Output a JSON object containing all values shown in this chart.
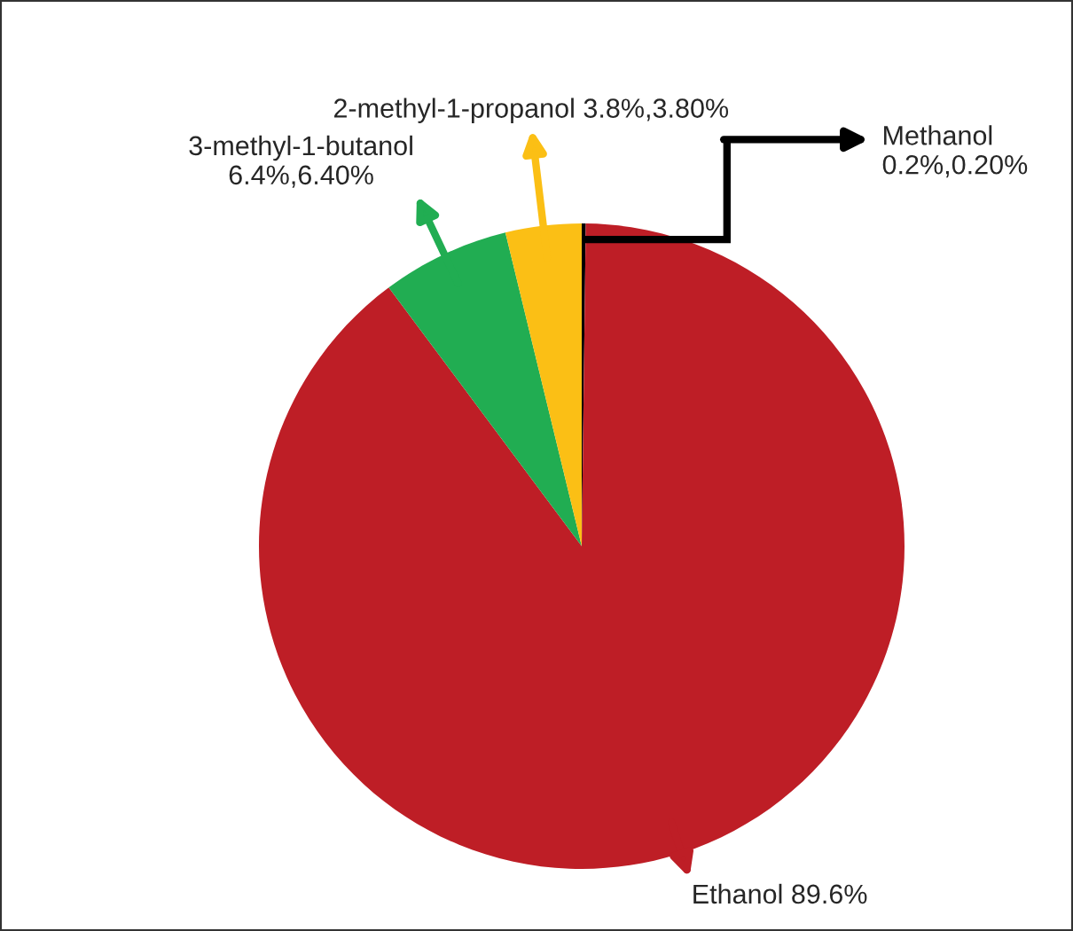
{
  "chart_data": {
    "type": "pie",
    "categories": [
      "Methanol",
      "Ethanol",
      "3-methyl-1-butanol",
      "2-methyl-1-propanol"
    ],
    "values": [
      0.2,
      89.6,
      6.4,
      3.8
    ],
    "colors": [
      "#000000",
      "#be1e26",
      "#21ad52",
      "#fbbf15"
    ],
    "value_labels": [
      "0.2%,0.20%",
      "89.6%",
      "6.4%,6.40%",
      "3.8%,3.80%"
    ]
  }
}
